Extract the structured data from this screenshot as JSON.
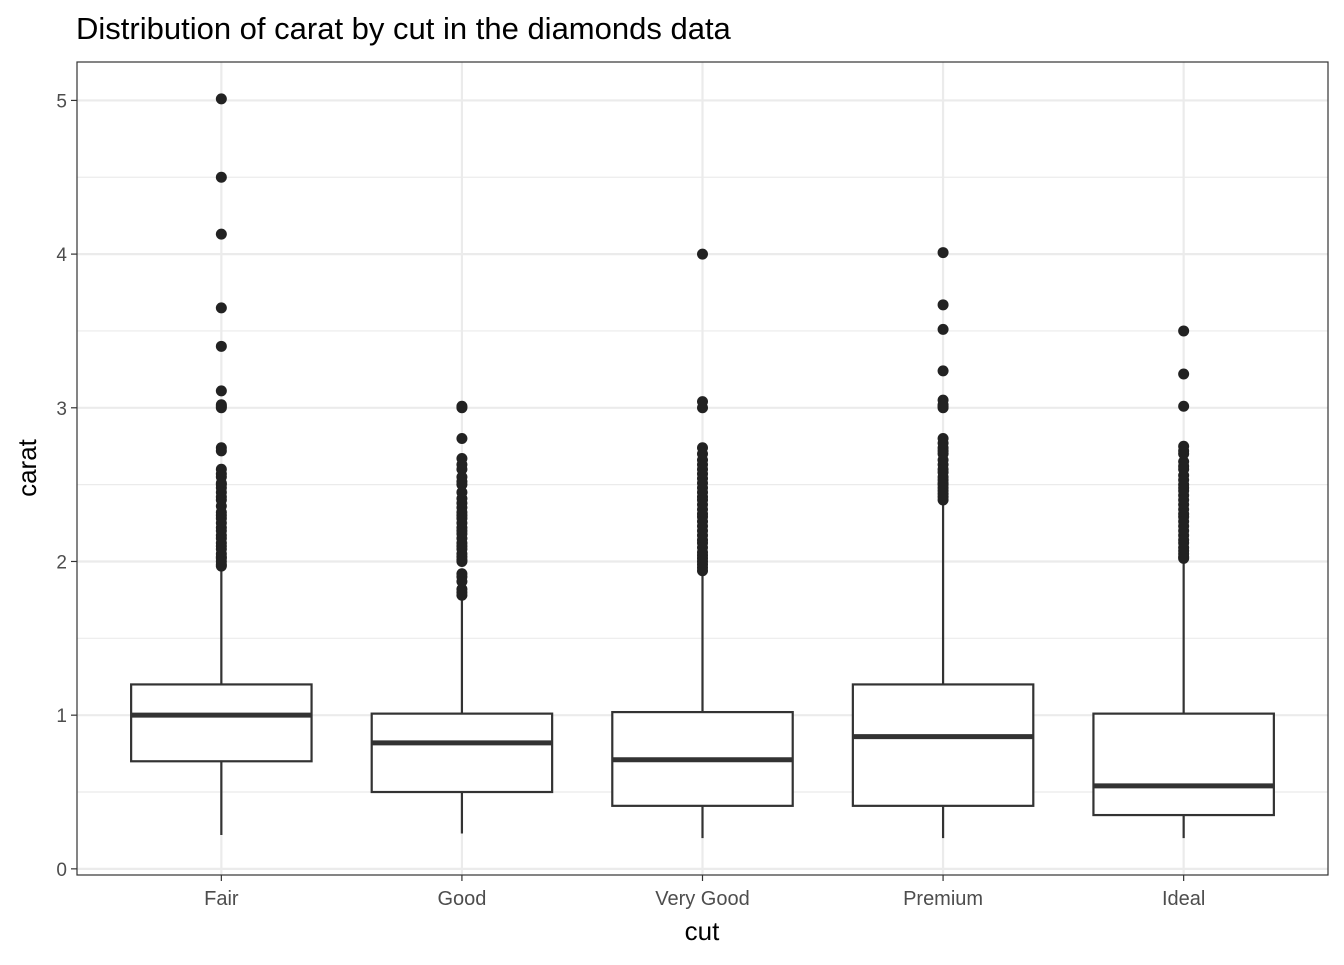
{
  "chart_data": {
    "type": "boxplot",
    "title": "Distribution of carat by cut in the diamonds data",
    "xlabel": "cut",
    "ylabel": "carat",
    "ylim": [
      -0.04,
      5.25
    ],
    "yticks": [
      0,
      1,
      2,
      3,
      4,
      5
    ],
    "grid": true,
    "categories": [
      "Fair",
      "Good",
      "Very Good",
      "Premium",
      "Ideal"
    ],
    "boxes": [
      {
        "cut": "Fair",
        "lower": 0.22,
        "q1": 0.7,
        "median": 1.0,
        "q3": 1.2,
        "upper": 1.95,
        "outliers": [
          5.01,
          4.5,
          4.13,
          3.65,
          3.4,
          3.11,
          3.02,
          3.01,
          3.0,
          2.74,
          2.72,
          2.6,
          2.57,
          2.55,
          2.51,
          2.5,
          2.48,
          2.45,
          2.42,
          2.4,
          2.36,
          2.32,
          2.3,
          2.28,
          2.25,
          2.22,
          2.2,
          2.17,
          2.15,
          2.12,
          2.1,
          2.08,
          2.05,
          2.03,
          2.02,
          2.0,
          1.98,
          1.97
        ]
      },
      {
        "cut": "Good",
        "lower": 0.23,
        "q1": 0.5,
        "median": 0.82,
        "q3": 1.01,
        "upper": 1.77,
        "outliers": [
          3.01,
          3.0,
          2.8,
          2.67,
          2.63,
          2.6,
          2.55,
          2.52,
          2.5,
          2.45,
          2.41,
          2.38,
          2.35,
          2.32,
          2.3,
          2.28,
          2.25,
          2.22,
          2.2,
          2.18,
          2.15,
          2.12,
          2.1,
          2.08,
          2.05,
          2.03,
          2.01,
          2.0,
          1.92,
          1.9,
          1.87,
          1.82,
          1.8,
          1.78
        ]
      },
      {
        "cut": "Very Good",
        "lower": 0.2,
        "q1": 0.41,
        "median": 0.71,
        "q3": 1.02,
        "upper": 1.93,
        "outliers": [
          4.0,
          3.04,
          3.0,
          2.74,
          2.7,
          2.66,
          2.63,
          2.6,
          2.57,
          2.54,
          2.51,
          2.48,
          2.45,
          2.42,
          2.4,
          2.37,
          2.34,
          2.31,
          2.29,
          2.26,
          2.23,
          2.2,
          2.17,
          2.14,
          2.12,
          2.09,
          2.06,
          2.04,
          2.02,
          2.0,
          1.98,
          1.96,
          1.94
        ]
      },
      {
        "cut": "Premium",
        "lower": 0.2,
        "q1": 0.41,
        "median": 0.86,
        "q3": 1.2,
        "upper": 2.38,
        "outliers": [
          4.01,
          3.67,
          3.51,
          3.24,
          3.05,
          3.02,
          3.01,
          3.0,
          2.8,
          2.77,
          2.74,
          2.72,
          2.7,
          2.66,
          2.63,
          2.6,
          2.58,
          2.55,
          2.53,
          2.51,
          2.5,
          2.48,
          2.46,
          2.44,
          2.42,
          2.4
        ]
      },
      {
        "cut": "Ideal",
        "lower": 0.2,
        "q1": 0.35,
        "median": 0.54,
        "q3": 1.01,
        "upper": 2.0,
        "outliers": [
          3.5,
          3.22,
          3.01,
          2.75,
          2.72,
          2.7,
          2.65,
          2.62,
          2.6,
          2.56,
          2.53,
          2.5,
          2.48,
          2.46,
          2.43,
          2.4,
          2.37,
          2.34,
          2.31,
          2.29,
          2.26,
          2.23,
          2.2,
          2.17,
          2.14,
          2.12,
          2.09,
          2.07,
          2.05,
          2.03,
          2.02
        ]
      }
    ],
    "colors": {
      "box_line": "#333333",
      "outlier": "#222222",
      "grid": "#ebebeb",
      "panel_border": "#333333",
      "background": "#ffffff"
    }
  }
}
